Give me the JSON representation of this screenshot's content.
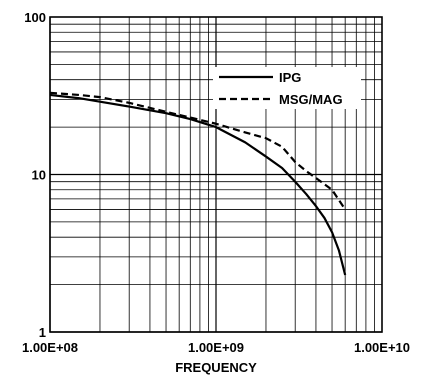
{
  "chart_data": {
    "type": "line",
    "title": "",
    "xlabel": "FREQUENCY",
    "ylabel": "",
    "x_scale": "log",
    "y_scale": "log",
    "xlim": [
      100000000,
      10000000000
    ],
    "ylim": [
      1,
      100
    ],
    "grid": true,
    "legend_position": "top-right",
    "x_tick_labels": [
      {
        "value": 100000000,
        "label": "1.00E+08"
      },
      {
        "value": 1000000000,
        "label": "1.00E+09"
      },
      {
        "value": 10000000000,
        "label": "1.00E+10"
      }
    ],
    "y_tick_labels": [
      {
        "value": 1,
        "label": "1"
      },
      {
        "value": 10,
        "label": "10"
      },
      {
        "value": 100,
        "label": "100"
      }
    ],
    "series": [
      {
        "name": "IPG",
        "line_style": "solid",
        "color": "#000000",
        "x": [
          100000000,
          150000000,
          200000000,
          300000000,
          500000000,
          700000000,
          1000000000,
          1500000000,
          2000000000,
          2500000000,
          3000000000,
          3500000000,
          4000000000,
          4500000000,
          5000000000,
          5500000000,
          6000000000
        ],
        "y": [
          32,
          30.5,
          29,
          27,
          24.5,
          22.5,
          20,
          16,
          13,
          11,
          9,
          7.5,
          6.3,
          5.3,
          4.3,
          3.3,
          2.3
        ]
      },
      {
        "name": "MSG/MAG",
        "line_style": "dashed",
        "color": "#000000",
        "x": [
          100000000,
          150000000,
          200000000,
          300000000,
          500000000,
          700000000,
          1000000000,
          1500000000,
          2000000000,
          2500000000,
          3000000000,
          3500000000,
          4000000000,
          5000000000,
          6000000000
        ],
        "y": [
          33,
          32,
          31,
          28.5,
          25,
          23,
          21,
          18.5,
          17,
          15,
          12,
          10.5,
          9.5,
          8,
          6
        ]
      }
    ]
  }
}
